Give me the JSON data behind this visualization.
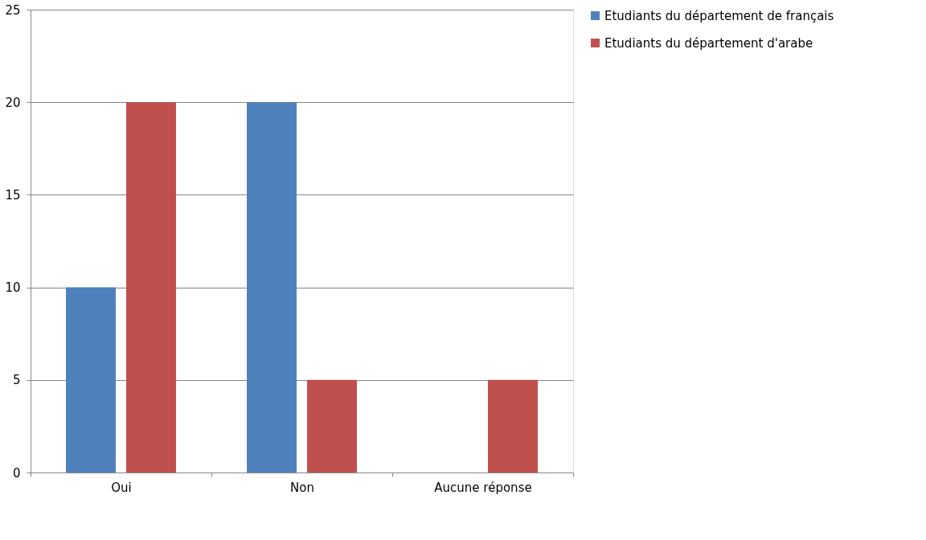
{
  "chart_data": {
    "type": "bar",
    "categories": [
      "Oui",
      "Non",
      "Aucune réponse"
    ],
    "series": [
      {
        "name": "Etudiants du département de français",
        "color": "#4f81bd",
        "values": [
          10,
          20,
          0
        ]
      },
      {
        "name": "Etudiants du département d'arabe",
        "color": "#c0504d",
        "values": [
          20,
          5,
          5
        ]
      }
    ],
    "ylim": [
      0,
      25
    ],
    "yticks": [
      0,
      5,
      10,
      15,
      20,
      25
    ],
    "grid": "y",
    "legend": "right"
  }
}
